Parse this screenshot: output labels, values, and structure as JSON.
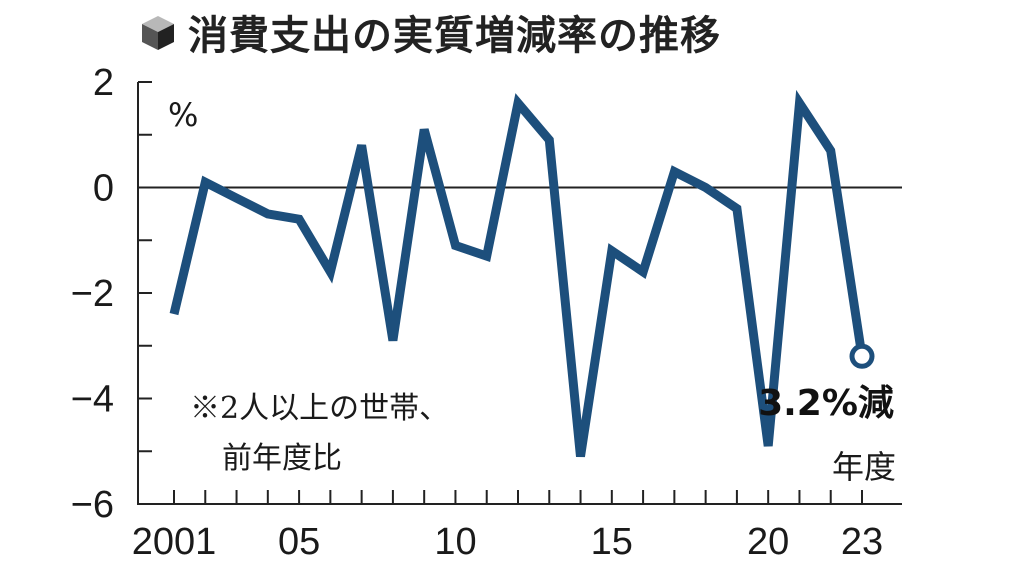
{
  "chart_data": {
    "type": "line",
    "title": "消費支出の実質増減率の推移",
    "ylabel": "%",
    "xlabel": "年度",
    "note_lines": [
      "※2人以上の世帯、",
      "前年度比"
    ],
    "callout": "3.2%減",
    "ylim": [
      -6,
      2
    ],
    "xlim": [
      2001,
      2023
    ],
    "y_ticks": [
      2,
      0,
      -2,
      -4,
      -6
    ],
    "y_tick_labels": [
      "2",
      "0",
      "−2",
      "−4",
      "−6"
    ],
    "x_ticks": [
      2001,
      2005,
      2010,
      2015,
      2020,
      2023
    ],
    "x_tick_labels": [
      "2001",
      "05",
      "10",
      "15",
      "20",
      "23"
    ],
    "series": [
      {
        "x": [
          2001,
          2002,
          2003,
          2004,
          2005,
          2006,
          2007,
          2008,
          2009,
          2010,
          2011,
          2012,
          2013,
          2014,
          2015,
          2016,
          2017,
          2018,
          2019,
          2020,
          2021,
          2022,
          2023
        ],
        "values": [
          -2.4,
          0.1,
          -0.2,
          -0.5,
          -0.6,
          -1.6,
          0.8,
          -2.9,
          1.1,
          -1.1,
          -1.3,
          1.6,
          0.9,
          -5.1,
          -1.2,
          -1.6,
          0.3,
          0.0,
          -0.4,
          -4.9,
          1.6,
          0.7,
          -3.2
        ]
      }
    ],
    "colors": {
      "line": "#1d4f7c",
      "axis": "#222222"
    },
    "grid": false
  }
}
